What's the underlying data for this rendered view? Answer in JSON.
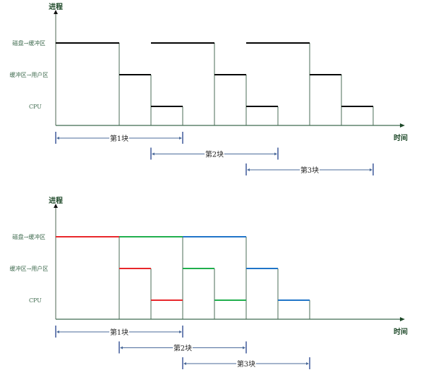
{
  "diagrams": [
    {
      "name": "serial-single-buffer",
      "y_axis_label": "进程",
      "x_axis_label": "时间",
      "stages": [
        "磁盘→缓冲区",
        "缓冲区→用户区",
        "CPU"
      ],
      "segments": [
        {
          "block": 1,
          "stage": 0,
          "start": 0,
          "end": 2,
          "color": "#000000"
        },
        {
          "block": 1,
          "stage": 1,
          "start": 2,
          "end": 3,
          "color": "#000000"
        },
        {
          "block": 1,
          "stage": 2,
          "start": 3,
          "end": 4,
          "color": "#000000"
        },
        {
          "block": 2,
          "stage": 0,
          "start": 3,
          "end": 5,
          "color": "#000000"
        },
        {
          "block": 2,
          "stage": 1,
          "start": 5,
          "end": 6,
          "color": "#000000"
        },
        {
          "block": 2,
          "stage": 2,
          "start": 6,
          "end": 7,
          "color": "#000000"
        },
        {
          "block": 3,
          "stage": 0,
          "start": 6,
          "end": 8,
          "color": "#000000"
        },
        {
          "block": 3,
          "stage": 1,
          "start": 8,
          "end": 9,
          "color": "#000000"
        },
        {
          "block": 3,
          "stage": 2,
          "start": 9,
          "end": 10,
          "color": "#000000"
        }
      ],
      "spans": [
        {
          "label": "第1块",
          "start": 0,
          "end": 4
        },
        {
          "label": "第2块",
          "start": 3,
          "end": 7
        },
        {
          "label": "第3块",
          "start": 6,
          "end": 10
        }
      ]
    },
    {
      "name": "overlapped-pipeline",
      "y_axis_label": "进程",
      "x_axis_label": "时间",
      "stages": [
        "磁盘→缓冲区",
        "缓冲区→用户区",
        "CPU"
      ],
      "segments": [
        {
          "block": 1,
          "stage": 0,
          "start": 0,
          "end": 2,
          "color": "#e8262a"
        },
        {
          "block": 1,
          "stage": 1,
          "start": 2,
          "end": 3,
          "color": "#e8262a"
        },
        {
          "block": 1,
          "stage": 2,
          "start": 3,
          "end": 4,
          "color": "#e8262a"
        },
        {
          "block": 2,
          "stage": 0,
          "start": 2,
          "end": 4,
          "color": "#1fae4c"
        },
        {
          "block": 2,
          "stage": 1,
          "start": 4,
          "end": 5,
          "color": "#1fae4c"
        },
        {
          "block": 2,
          "stage": 2,
          "start": 5,
          "end": 6,
          "color": "#1fae4c"
        },
        {
          "block": 3,
          "stage": 0,
          "start": 4,
          "end": 6,
          "color": "#1f74c8"
        },
        {
          "block": 3,
          "stage": 1,
          "start": 6,
          "end": 7,
          "color": "#1f74c8"
        },
        {
          "block": 3,
          "stage": 2,
          "start": 7,
          "end": 8,
          "color": "#1f74c8"
        }
      ],
      "spans": [
        {
          "label": "第1块",
          "start": 0,
          "end": 4
        },
        {
          "label": "第2块",
          "start": 2,
          "end": 6
        },
        {
          "label": "第3块",
          "start": 4,
          "end": 8
        }
      ]
    }
  ]
}
